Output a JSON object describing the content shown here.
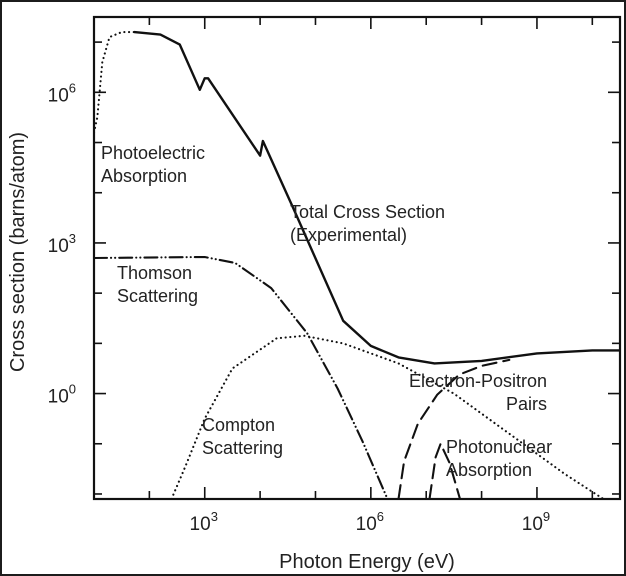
{
  "chart_data": {
    "type": "line",
    "title": "",
    "xlabel": "Photon Energy (eV)",
    "ylabel": "Cross section (barns/atom)",
    "xscale": "log",
    "yscale": "log",
    "xlim_log10": [
      1.0,
      10.5
    ],
    "ylim_log10": [
      -2.1,
      7.5
    ],
    "x_ticks": [
      {
        "base": "10",
        "exp": "3",
        "log10": 3
      },
      {
        "base": "10",
        "exp": "6",
        "log10": 6
      },
      {
        "base": "10",
        "exp": "9",
        "log10": 9
      }
    ],
    "y_ticks": [
      {
        "base": "10",
        "exp": "0",
        "log10": 0
      },
      {
        "base": "10",
        "exp": "3",
        "log10": 3
      },
      {
        "base": "10",
        "exp": "6",
        "log10": 6
      }
    ],
    "grid": false,
    "series": [
      {
        "name": "Total Cross Section (Experimental)",
        "style": "solid",
        "log10_points": [
          [
            1.73,
            7.2
          ],
          [
            2.2,
            7.15
          ],
          [
            2.55,
            6.95
          ],
          [
            2.91,
            6.05
          ],
          [
            3.0,
            6.28
          ],
          [
            3.06,
            6.28
          ],
          [
            4.0,
            4.74
          ],
          [
            4.05,
            5.03
          ],
          [
            4.6,
            3.69
          ],
          [
            5.5,
            1.45
          ],
          [
            6.0,
            0.95
          ],
          [
            6.5,
            0.72
          ],
          [
            7.15,
            0.6
          ],
          [
            8.0,
            0.65
          ],
          [
            9.0,
            0.8
          ],
          [
            10.0,
            0.86
          ],
          [
            10.5,
            0.86
          ]
        ]
      },
      {
        "name": "Photoelectric Absorption",
        "style": "dotted",
        "log10_points": [
          [
            1.0,
            5.2
          ],
          [
            1.06,
            5.5
          ],
          [
            1.15,
            6.6
          ],
          [
            1.28,
            7.1
          ],
          [
            1.5,
            7.2
          ],
          [
            1.73,
            7.2
          ]
        ]
      },
      {
        "name": "Thomson Scattering",
        "style": "dash-dot-dot",
        "log10_points": [
          [
            1.0,
            2.7
          ],
          [
            3.0,
            2.72
          ],
          [
            3.55,
            2.6
          ],
          [
            4.2,
            2.1
          ],
          [
            4.85,
            1.2
          ],
          [
            5.4,
            0.1
          ],
          [
            5.85,
            -0.95
          ],
          [
            6.3,
            -2.1
          ]
        ]
      },
      {
        "name": "Compton Scattering",
        "style": "dotted",
        "log10_points": [
          [
            2.4,
            -2.1
          ],
          [
            2.65,
            -1.45
          ],
          [
            3.0,
            -0.5
          ],
          [
            3.5,
            0.5
          ],
          [
            4.3,
            1.1
          ],
          [
            4.8,
            1.15
          ],
          [
            5.5,
            1.0
          ],
          [
            6.5,
            0.6
          ],
          [
            7.5,
            0.0
          ],
          [
            8.5,
            -0.8
          ],
          [
            9.5,
            -1.6
          ],
          [
            10.2,
            -2.1
          ]
        ]
      },
      {
        "name": "Electron-Positron Pairs",
        "style": "dashed",
        "log10_points": [
          [
            6.5,
            -2.1
          ],
          [
            6.6,
            -1.35
          ],
          [
            6.85,
            -0.6
          ],
          [
            7.2,
            -0.02
          ],
          [
            7.6,
            0.38
          ],
          [
            8.0,
            0.55
          ],
          [
            8.5,
            0.67
          ]
        ]
      },
      {
        "name": "Photonuclear Absorption",
        "style": "dashed",
        "log10_points": [
          [
            7.06,
            -2.1
          ],
          [
            7.17,
            -1.27
          ],
          [
            7.26,
            -1.0
          ],
          [
            7.42,
            -1.38
          ],
          [
            7.61,
            -2.1
          ]
        ]
      }
    ],
    "annotations": [
      {
        "id": "photoelectric",
        "lines": [
          "Photoelectric",
          "Absorption"
        ]
      },
      {
        "id": "total",
        "lines": [
          "Total Cross Section",
          "(Experimental)"
        ]
      },
      {
        "id": "thomson",
        "lines": [
          "Thomson",
          "Scattering"
        ]
      },
      {
        "id": "compton",
        "lines": [
          "Compton",
          "Scattering"
        ]
      },
      {
        "id": "pairs",
        "lines": [
          "Electron-Positron",
          "Pairs"
        ]
      },
      {
        "id": "photonuclear",
        "lines": [
          "Photonuclear",
          "Absorption"
        ]
      }
    ]
  }
}
